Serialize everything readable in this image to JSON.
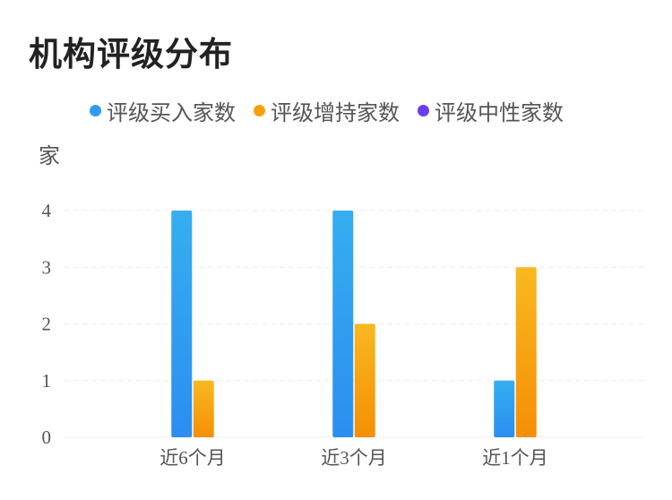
{
  "title": "机构评级分布",
  "legend": [
    {
      "label": "评级买入家数",
      "color": "#2f9bf0"
    },
    {
      "label": "评级增持家数",
      "color": "#f6a10c"
    },
    {
      "label": "评级中性家数",
      "color": "#6a3ff0"
    }
  ],
  "unit_label": "家",
  "chart_data": {
    "type": "bar",
    "title": "机构评级分布",
    "ylabel": "家",
    "xlabel": "",
    "categories": [
      "近6个月",
      "近3个月",
      "近1个月"
    ],
    "series": [
      {
        "name": "评级买入家数",
        "values": [
          4,
          4,
          1
        ],
        "color": "#2f9bf0"
      },
      {
        "name": "评级增持家数",
        "values": [
          1,
          2,
          3
        ],
        "color": "#f6a10c"
      },
      {
        "name": "评级中性家数",
        "values": [
          0,
          0,
          0
        ],
        "color": "#6a3ff0"
      }
    ],
    "ylim": [
      0,
      4
    ],
    "yticks": [
      0,
      1,
      2,
      3,
      4
    ],
    "grid": true,
    "legend_position": "top"
  }
}
